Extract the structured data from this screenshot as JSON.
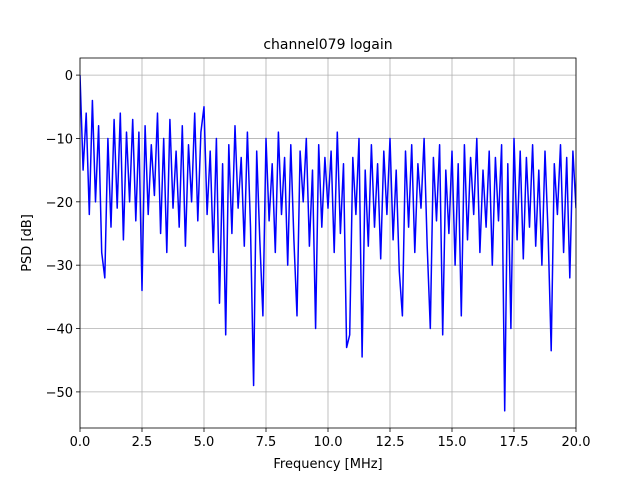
{
  "chart_data": {
    "type": "line",
    "title": "channel079 logain",
    "xlabel": "Frequency [MHz]",
    "ylabel": "PSD [dB]",
    "x": [
      0,
      0.125,
      0.25,
      0.375,
      0.5,
      0.625,
      0.75,
      0.875,
      1,
      1.125,
      1.25,
      1.375,
      1.5,
      1.625,
      1.75,
      1.875,
      2,
      2.125,
      2.25,
      2.375,
      2.5,
      2.625,
      2.75,
      2.875,
      3,
      3.125,
      3.25,
      3.375,
      3.5,
      3.625,
      3.75,
      3.875,
      4,
      4.125,
      4.25,
      4.375,
      4.5,
      4.625,
      4.75,
      4.875,
      5,
      5.125,
      5.25,
      5.375,
      5.5,
      5.625,
      5.75,
      5.875,
      6,
      6.125,
      6.25,
      6.375,
      6.5,
      6.625,
      6.75,
      6.875,
      7,
      7.125,
      7.25,
      7.375,
      7.5,
      7.625,
      7.75,
      7.875,
      8,
      8.125,
      8.25,
      8.375,
      8.5,
      8.625,
      8.75,
      8.875,
      9,
      9.125,
      9.25,
      9.375,
      9.5,
      9.625,
      9.75,
      9.875,
      10,
      10.125,
      10.25,
      10.375,
      10.5,
      10.625,
      10.75,
      10.875,
      11,
      11.125,
      11.25,
      11.375,
      11.5,
      11.625,
      11.75,
      11.875,
      12,
      12.125,
      12.25,
      12.375,
      12.5,
      12.625,
      12.75,
      12.875,
      13,
      13.125,
      13.25,
      13.375,
      13.5,
      13.625,
      13.75,
      13.875,
      14,
      14.125,
      14.25,
      14.375,
      14.5,
      14.625,
      14.75,
      14.875,
      15,
      15.125,
      15.25,
      15.375,
      15.5,
      15.625,
      15.75,
      15.875,
      16,
      16.125,
      16.25,
      16.375,
      16.5,
      16.625,
      16.75,
      16.875,
      17,
      17.125,
      17.25,
      17.375,
      17.5,
      17.625,
      17.75,
      17.875,
      18,
      18.125,
      18.25,
      18.375,
      18.5,
      18.625,
      18.75,
      18.875,
      19,
      19.125,
      19.25,
      19.375,
      19.5,
      19.625,
      19.75,
      19.875,
      20
    ],
    "series": [
      {
        "name": "PSD",
        "color": "#0000ff",
        "values": [
          0,
          -15,
          -6,
          -22,
          -4,
          -20,
          -8,
          -28,
          -32,
          -10,
          -24,
          -7,
          -21,
          -6,
          -26,
          -9,
          -20,
          -7,
          -23,
          -9,
          -34,
          -8,
          -22,
          -11,
          -19,
          -6,
          -25,
          -10,
          -28,
          -7,
          -21,
          -12,
          -24,
          -8,
          -27,
          -11,
          -20,
          -6,
          -23,
          -9,
          -5,
          -22,
          -12,
          -28,
          -10,
          -36,
          -14,
          -41,
          -11,
          -25,
          -8,
          -21,
          -13,
          -27,
          -9,
          -24,
          -49,
          -12,
          -26,
          -38,
          -10,
          -23,
          -14,
          -28,
          -9,
          -22,
          -13,
          -30,
          -11,
          -26,
          -38,
          -12,
          -20,
          -10,
          -27,
          -15,
          -40,
          -11,
          -24,
          -13,
          -21,
          -12,
          -28,
          -9,
          -25,
          -14,
          -43,
          -41,
          -13,
          -22,
          -10,
          -44.5,
          -15,
          -27,
          -11,
          -24,
          -14,
          -29,
          -12,
          -22,
          -10,
          -26,
          -15,
          -31,
          -38,
          -12,
          -24,
          -11,
          -28,
          -14,
          -21,
          -10,
          -27,
          -40,
          -13,
          -23,
          -11,
          -41,
          -15,
          -25,
          -12,
          -30,
          -14,
          -38,
          -11,
          -26,
          -13,
          -22,
          -10,
          -28,
          -15,
          -24,
          -12,
          -30,
          -13,
          -23,
          -11,
          -53,
          -14,
          -40,
          -10,
          -26,
          -12,
          -29,
          -13,
          -24,
          -11,
          -27,
          -15,
          -30,
          -12,
          -25,
          -43.5,
          -14,
          -22,
          -11,
          -28,
          -13,
          -32,
          -12,
          -21
        ]
      }
    ],
    "xlim": [
      0,
      20
    ],
    "ylim": [
      -55.7,
      2.7
    ],
    "xticks": [
      {
        "value": 0,
        "label": "0.0"
      },
      2.5,
      {
        "value": 5,
        "label": "5.0"
      },
      7.5,
      {
        "value": 10,
        "label": "10.0"
      },
      12.5,
      {
        "value": 15,
        "label": "15.0"
      },
      17.5,
      {
        "value": 20,
        "label": "20.0"
      }
    ],
    "yticks": [
      {
        "value": -50,
        "label": "−50"
      },
      {
        "value": -40,
        "label": "−40"
      },
      {
        "value": -30,
        "label": "−30"
      },
      {
        "value": -20,
        "label": "−20"
      },
      {
        "value": -10,
        "label": "−10"
      },
      0
    ],
    "grid": true
  }
}
